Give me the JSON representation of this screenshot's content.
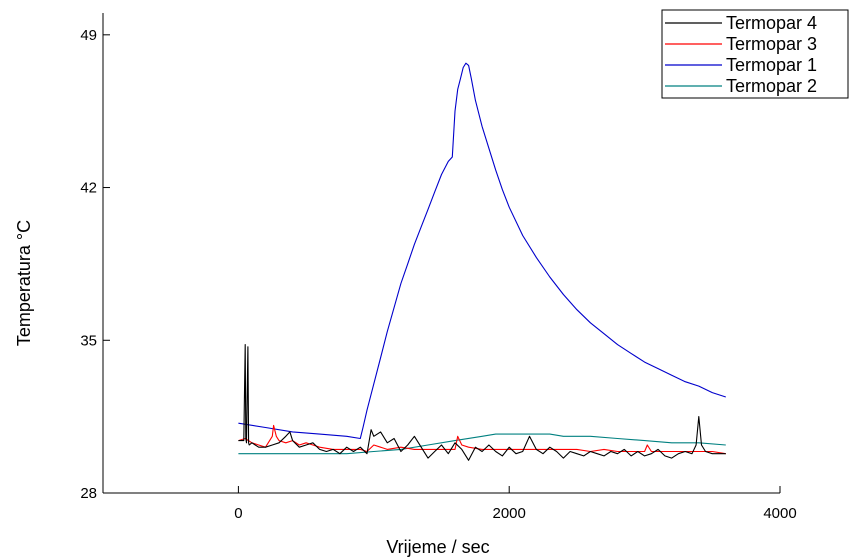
{
  "chart_data": {
    "type": "line",
    "title": "",
    "xlabel": "Vrijeme / sec",
    "ylabel": "Temperatura °C",
    "xlim": [
      -1000,
      4000
    ],
    "ylim": [
      28,
      50
    ],
    "x_ticks": [
      0,
      2000,
      4000
    ],
    "y_ticks": [
      28,
      35,
      42,
      49
    ],
    "grid": false,
    "legend_position": "top-right",
    "series": [
      {
        "name": "Termopar 4",
        "color": "#000000",
        "x": [
          0,
          40,
          50,
          55,
          60,
          70,
          75,
          80,
          100,
          150,
          200,
          250,
          300,
          350,
          380,
          400,
          450,
          500,
          550,
          600,
          650,
          700,
          750,
          800,
          850,
          900,
          950,
          980,
          1000,
          1050,
          1100,
          1150,
          1200,
          1250,
          1300,
          1350,
          1400,
          1450,
          1500,
          1550,
          1600,
          1650,
          1700,
          1750,
          1800,
          1850,
          1900,
          1950,
          2000,
          2050,
          2100,
          2150,
          2200,
          2250,
          2300,
          2350,
          2400,
          2450,
          2500,
          2550,
          2600,
          2650,
          2700,
          2750,
          2800,
          2850,
          2900,
          2950,
          3000,
          3050,
          3100,
          3150,
          3200,
          3250,
          3300,
          3350,
          3380,
          3400,
          3420,
          3450,
          3500,
          3550,
          3600
        ],
        "y": [
          30.4,
          30.4,
          34.8,
          30.5,
          30.3,
          34.7,
          30.3,
          30.2,
          30.3,
          30.1,
          30.1,
          30.2,
          30.3,
          30.6,
          30.8,
          30.4,
          30.1,
          30.2,
          30.3,
          30.0,
          29.9,
          30.0,
          29.8,
          30.1,
          29.9,
          30.1,
          29.8,
          30.9,
          30.6,
          30.8,
          30.3,
          30.5,
          29.9,
          30.2,
          30.6,
          30.1,
          29.6,
          29.9,
          30.2,
          29.8,
          30.3,
          30.0,
          29.5,
          30.1,
          29.9,
          30.2,
          29.9,
          29.7,
          30.1,
          29.8,
          29.9,
          30.6,
          30.0,
          29.8,
          30.1,
          29.9,
          29.6,
          29.9,
          29.8,
          29.7,
          29.9,
          29.8,
          29.7,
          29.9,
          29.8,
          30.0,
          29.7,
          29.9,
          29.7,
          29.8,
          30.0,
          29.7,
          29.6,
          29.8,
          29.9,
          29.8,
          30.2,
          31.5,
          30.2,
          29.9,
          29.8,
          29.8,
          29.8
        ]
      },
      {
        "name": "Termopar 3",
        "color": "#ff0000",
        "x": [
          0,
          50,
          100,
          150,
          200,
          250,
          260,
          280,
          300,
          350,
          400,
          450,
          500,
          550,
          600,
          700,
          800,
          900,
          950,
          1000,
          1050,
          1100,
          1200,
          1300,
          1400,
          1500,
          1600,
          1620,
          1650,
          1700,
          1800,
          1900,
          2000,
          2100,
          2200,
          2300,
          2400,
          2500,
          2600,
          2700,
          2800,
          2900,
          3000,
          3020,
          3050,
          3100,
          3200,
          3300,
          3400,
          3500,
          3600
        ],
        "y": [
          30.4,
          30.5,
          30.3,
          30.2,
          30.1,
          30.6,
          31.1,
          30.6,
          30.4,
          30.3,
          30.4,
          30.2,
          30.3,
          30.2,
          30.1,
          30.0,
          30.0,
          30.0,
          29.9,
          30.2,
          30.1,
          30.0,
          30.1,
          30.0,
          30.0,
          30.0,
          30.0,
          30.6,
          30.2,
          30.1,
          30.0,
          30.0,
          30.0,
          30.0,
          30.0,
          30.0,
          30.0,
          30.0,
          29.9,
          30.0,
          29.9,
          29.9,
          29.9,
          30.2,
          29.9,
          29.9,
          29.9,
          29.9,
          29.9,
          29.9,
          29.8
        ]
      },
      {
        "name": "Termopar 1",
        "color": "#0000cc",
        "x": [
          0,
          200,
          400,
          600,
          800,
          900,
          920,
          950,
          1000,
          1050,
          1100,
          1150,
          1200,
          1250,
          1300,
          1350,
          1400,
          1450,
          1500,
          1550,
          1580,
          1600,
          1620,
          1640,
          1660,
          1680,
          1700,
          1720,
          1750,
          1800,
          1850,
          1900,
          1950,
          2000,
          2100,
          2200,
          2300,
          2400,
          2500,
          2600,
          2700,
          2800,
          2900,
          3000,
          3100,
          3200,
          3300,
          3400,
          3500,
          3600
        ],
        "y": [
          31.2,
          31.0,
          30.8,
          30.7,
          30.6,
          30.5,
          31.0,
          31.8,
          33.0,
          34.2,
          35.4,
          36.5,
          37.6,
          38.5,
          39.4,
          40.2,
          41.0,
          41.8,
          42.6,
          43.2,
          43.4,
          45.5,
          46.5,
          47.0,
          47.5,
          47.7,
          47.6,
          47.0,
          46.0,
          44.8,
          43.8,
          42.8,
          41.9,
          41.1,
          39.8,
          38.8,
          37.9,
          37.1,
          36.4,
          35.8,
          35.3,
          34.8,
          34.4,
          34.0,
          33.7,
          33.4,
          33.1,
          32.9,
          32.6,
          32.4
        ]
      },
      {
        "name": "Termopar 2",
        "color": "#008080",
        "x": [
          0,
          200,
          400,
          600,
          800,
          1000,
          1200,
          1400,
          1600,
          1800,
          1900,
          2000,
          2100,
          2200,
          2300,
          2400,
          2600,
          2800,
          3000,
          3200,
          3400,
          3600
        ],
        "y": [
          29.8,
          29.8,
          29.8,
          29.8,
          29.8,
          29.9,
          30.0,
          30.2,
          30.4,
          30.6,
          30.7,
          30.7,
          30.7,
          30.7,
          30.7,
          30.6,
          30.6,
          30.5,
          30.4,
          30.3,
          30.3,
          30.2
        ]
      }
    ]
  }
}
